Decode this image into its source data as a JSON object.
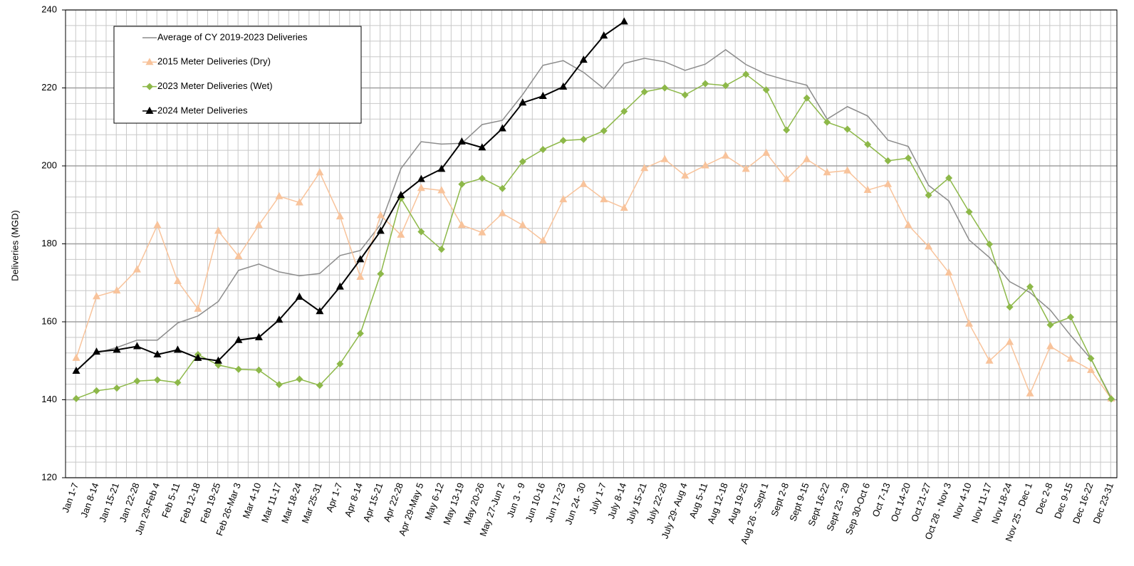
{
  "chart_data": {
    "type": "line",
    "y_label": "Deliveries (MGD)",
    "categories": [
      "Jan 1-7",
      "Jan 8-14",
      "Jan 15-21",
      "Jan 22-28",
      "Jan 29-Feb 4",
      "Feb 5-11",
      "Feb 12-18",
      "Feb 19-25",
      "Feb 26-Mar  3",
      "Mar 4-10",
      "Mar 11-17",
      "Mar 18-24",
      "Mar 25-31",
      "Apr 1-7",
      "Apr 8-14",
      "Apr 15-21",
      "Apr 22-28",
      "Apr 29-May 5",
      "May 6-12",
      "May 13-19",
      "May 20-26",
      "May 27-Jun 2",
      "Jun 3 - 9",
      "Jun 10-16",
      "Jun 17-23",
      "Jun 24- 30",
      "July 1-7",
      "July 8-14",
      "July 15-21",
      "July 22-28",
      "July 29- Aug 4",
      "Aug 5-11",
      "Aug 12-18",
      "Aug 19-25",
      "Aug 26 - Sept 1",
      "Sept 2-8",
      "Sept 9-15",
      "Sept 16-22",
      "Sept 23 - 29",
      "Sep 30-Oct 6",
      "Oct 7-13",
      "Oct 14-20",
      "Oct 21-27",
      "Oct 28 - Nov 3",
      "Nov 4-10",
      "Nov 11-17",
      "Nov 18-24",
      "Nov 25 - Dec 1",
      "Dec 2-8",
      "Dec 9-15",
      "Dec 16-22",
      "Dec 23-31"
    ],
    "series": [
      {
        "name": "Average of CY 2019-2023 Deliveries",
        "color": "#8c8c8c",
        "marker": "none",
        "values": [
          147.5,
          152,
          153.4,
          155.3,
          155.3,
          159.7,
          161.5,
          165.2,
          173.2,
          174.8,
          172.8,
          171.8,
          172.4,
          177,
          178.3,
          185,
          199.3,
          206.2,
          205.6,
          205.8,
          210.6,
          211.7,
          218.3,
          225.8,
          227,
          224,
          219.8,
          226.3,
          227.6,
          226.7,
          224.5,
          226.1,
          229.8,
          226,
          223.5,
          222,
          220.7,
          212,
          215.2,
          212.8,
          206.6,
          205,
          195,
          191,
          181,
          176.5,
          170.3,
          167.5,
          163,
          156.5,
          150.5,
          140.5
        ]
      },
      {
        "name": "2015 Meter Deliveries (Dry)",
        "color": "#f8c39b",
        "marker": "triangle",
        "values": [
          150.7,
          166.5,
          168,
          173.4,
          184.8,
          170.4,
          163.3,
          183.3,
          176.8,
          184.8,
          192.2,
          190.6,
          198.3,
          187,
          171.5,
          187.3,
          182.3,
          194.3,
          193.7,
          184.8,
          182.9,
          187.8,
          184.8,
          180.8,
          191.4,
          195.3,
          191.4,
          189.2,
          199.4,
          201.7,
          197.5,
          200.1,
          202.6,
          199.2,
          203.3,
          196.6,
          201.7,
          198.3,
          198.8,
          193.8,
          195.3,
          184.8,
          179.3,
          172.6,
          159.5,
          150,
          154.8,
          141.6,
          153.7,
          150.5,
          147.6,
          140.3
        ]
      },
      {
        "name": "2023 Meter Deliveries (Wet)",
        "color": "#8db849",
        "marker": "diamond",
        "values": [
          140.3,
          142.3,
          143,
          144.8,
          145.1,
          144.4,
          151.6,
          148.9,
          147.8,
          147.6,
          143.9,
          145.3,
          143.7,
          149.2,
          157,
          172.3,
          191.7,
          183.1,
          178.6,
          195.3,
          196.8,
          194.2,
          201.1,
          204.2,
          206.5,
          206.8,
          209,
          214,
          219,
          220,
          218.2,
          221.1,
          220.6,
          223.5,
          219.5,
          209.2,
          217.4,
          211.2,
          209.4,
          205.5,
          201.3,
          202,
          192.5,
          196.9,
          188.2,
          179.9,
          163.8,
          169,
          159.2,
          161.2,
          150.6,
          140.2
        ]
      },
      {
        "name": "2024 Meter Deliveries",
        "color": "#000000",
        "marker": "triangle",
        "values": [
          147.4,
          152.3,
          152.8,
          153.7,
          151.6,
          152.8,
          150.7,
          150,
          155.3,
          156,
          160.5,
          166.4,
          162.7,
          169,
          176,
          183.3,
          192.5,
          196.6,
          199.2,
          206.2,
          204.7,
          209.6,
          216.2,
          217.9,
          220.3,
          227.2,
          233.4,
          237,
          null,
          null,
          null,
          null,
          null,
          null,
          null,
          null,
          null,
          null,
          null,
          null,
          null,
          null,
          null,
          null,
          null,
          null,
          null,
          null,
          null,
          null,
          null,
          null
        ]
      }
    ],
    "ylim": [
      120,
      240
    ],
    "yticks": [
      120,
      140,
      160,
      180,
      200,
      220,
      240
    ],
    "grid": true,
    "legend": "upper left"
  }
}
